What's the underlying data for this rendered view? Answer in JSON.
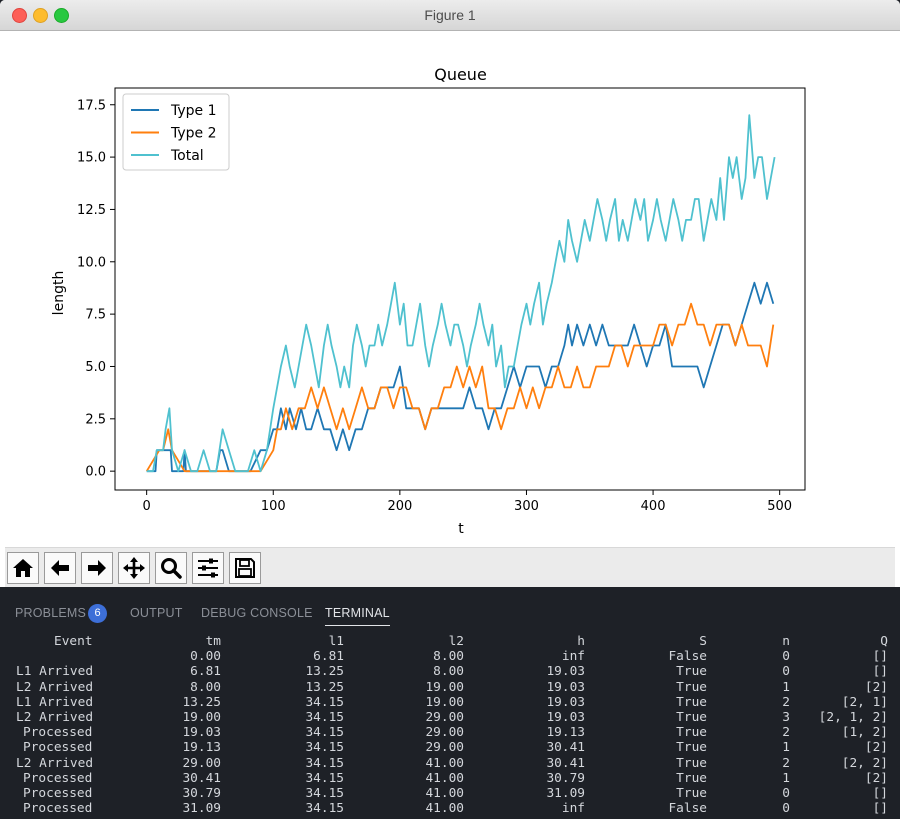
{
  "window": {
    "title": "Figure 1"
  },
  "chart_data": {
    "type": "line",
    "title": "Queue",
    "xlabel": "t",
    "ylabel": "length",
    "xlim": [
      -25,
      520
    ],
    "ylim": [
      -0.9,
      18.3
    ],
    "xticks": [
      0,
      100,
      200,
      300,
      400,
      500
    ],
    "xtick_labels": [
      "0",
      "100",
      "200",
      "300",
      "400",
      "500"
    ],
    "yticks": [
      0,
      2.5,
      5,
      7.5,
      10,
      12.5,
      15,
      17.5
    ],
    "ytick_labels": [
      "0.0",
      "2.5",
      "5.0",
      "7.5",
      "10.0",
      "12.5",
      "15.0",
      "17.5"
    ],
    "legend_position": "top-left",
    "colors": {
      "Type 1": "#1f77b4",
      "Type 2": "#ff7f0e",
      "Total": "#4fc1cf"
    },
    "series": [
      {
        "name": "Type 1",
        "x": [
          0,
          7,
          8,
          13,
          19,
          20,
          29,
          30,
          31,
          40,
          55,
          58,
          60,
          65,
          75,
          82,
          90,
          95,
          100,
          103,
          106,
          110,
          113,
          118,
          122,
          126,
          130,
          135,
          140,
          145,
          150,
          155,
          160,
          165,
          170,
          175,
          180,
          185,
          190,
          195,
          200,
          205,
          210,
          215,
          220,
          225,
          230,
          235,
          240,
          245,
          250,
          255,
          260,
          265,
          270,
          275,
          280,
          285,
          290,
          295,
          300,
          305,
          310,
          315,
          320,
          325,
          330,
          333,
          336,
          340,
          345,
          350,
          355,
          360,
          365,
          370,
          375,
          380,
          385,
          390,
          395,
          400,
          405,
          410,
          415,
          420,
          425,
          430,
          435,
          440,
          445,
          450,
          455,
          460,
          465,
          470,
          475,
          480,
          485,
          490,
          495
        ],
        "y": [
          0,
          0,
          1,
          1,
          1,
          0,
          0,
          1,
          0,
          0,
          0,
          1,
          1,
          0,
          0,
          0,
          1,
          1,
          2,
          2,
          3,
          2,
          3,
          2,
          3,
          2,
          2,
          3,
          2,
          2,
          1,
          2,
          1,
          2,
          2,
          3,
          3,
          4,
          4,
          4,
          5,
          3,
          3,
          3,
          2,
          3,
          3,
          3,
          3,
          3,
          3,
          4,
          3,
          3,
          2,
          3,
          3,
          4,
          5,
          4,
          5,
          5,
          5,
          4,
          5,
          5,
          6,
          7,
          6,
          7,
          6,
          7,
          6,
          7,
          6,
          6,
          6,
          6,
          7,
          6,
          5,
          6,
          6,
          7,
          5,
          5,
          5,
          5,
          5,
          4,
          5,
          6,
          7,
          7,
          6,
          7,
          8,
          9,
          8,
          9,
          8
        ]
      },
      {
        "name": "Type 2",
        "x": [
          0,
          10,
          13,
          17,
          20,
          30,
          45,
          60,
          70,
          80,
          90,
          100,
          103,
          106,
          110,
          115,
          120,
          125,
          130,
          135,
          140,
          145,
          150,
          155,
          160,
          165,
          170,
          175,
          180,
          185,
          190,
          195,
          200,
          205,
          210,
          215,
          220,
          225,
          230,
          235,
          240,
          245,
          250,
          255,
          260,
          265,
          270,
          275,
          280,
          285,
          290,
          295,
          300,
          305,
          310,
          315,
          320,
          325,
          330,
          335,
          340,
          345,
          350,
          355,
          360,
          365,
          370,
          375,
          380,
          385,
          390,
          395,
          400,
          405,
          410,
          415,
          420,
          425,
          430,
          435,
          440,
          445,
          450,
          455,
          460,
          465,
          470,
          475,
          480,
          485,
          490,
          495
        ],
        "y": [
          0,
          1,
          1,
          2,
          1,
          0,
          0,
          0,
          0,
          0,
          0,
          1,
          2,
          2,
          3,
          2,
          3,
          3,
          4,
          3,
          4,
          3,
          2,
          3,
          2,
          3,
          4,
          3,
          3,
          4,
          4,
          3,
          4,
          4,
          3,
          3,
          2,
          3,
          3,
          4,
          4,
          5,
          4,
          5,
          4,
          5,
          3,
          3,
          2,
          3,
          3,
          4,
          3,
          4,
          3,
          4,
          4,
          5,
          4,
          4,
          5,
          4,
          4,
          5,
          5,
          5,
          6,
          6,
          5,
          6,
          6,
          6,
          6,
          7,
          7,
          6,
          7,
          7,
          8,
          7,
          7,
          6,
          7,
          7,
          7,
          6,
          7,
          6,
          6,
          6,
          5,
          7
        ]
      },
      {
        "name": "Total",
        "x": [
          0,
          5,
          8,
          13,
          15,
          18,
          20,
          25,
          30,
          35,
          40,
          45,
          50,
          55,
          60,
          65,
          70,
          75,
          80,
          85,
          90,
          95,
          100,
          103,
          106,
          110,
          113,
          117,
          120,
          123,
          126,
          130,
          133,
          136,
          140,
          143,
          146,
          150,
          153,
          156,
          160,
          163,
          166,
          170,
          173,
          176,
          180,
          183,
          186,
          190,
          193,
          196,
          200,
          203,
          206,
          210,
          213,
          216,
          220,
          223,
          226,
          230,
          233,
          236,
          240,
          243,
          246,
          250,
          253,
          256,
          260,
          263,
          266,
          270,
          273,
          276,
          280,
          283,
          286,
          290,
          293,
          296,
          300,
          303,
          306,
          310,
          313,
          316,
          320,
          323,
          326,
          330,
          333,
          336,
          340,
          343,
          346,
          350,
          353,
          356,
          360,
          363,
          366,
          370,
          373,
          376,
          380,
          383,
          386,
          390,
          393,
          396,
          400,
          403,
          406,
          410,
          413,
          416,
          420,
          423,
          426,
          430,
          433,
          436,
          440,
          443,
          446,
          450,
          453,
          456,
          460,
          463,
          466,
          470,
          473,
          476,
          480,
          483,
          486,
          490,
          493,
          496
        ],
        "y": [
          0,
          0,
          1,
          1,
          2,
          3,
          1,
          0,
          1,
          0,
          0,
          1,
          0,
          0,
          2,
          1,
          0,
          0,
          0,
          1,
          0,
          1,
          3,
          4,
          5,
          6,
          5,
          4,
          5,
          6,
          7,
          6,
          5,
          4,
          6,
          7,
          6,
          5,
          4,
          5,
          4,
          6,
          7,
          6,
          5,
          6,
          6,
          7,
          6,
          7,
          8,
          9,
          7,
          8,
          6,
          6,
          7,
          8,
          6,
          5,
          6,
          7,
          8,
          7,
          6,
          7,
          7,
          6,
          5,
          6,
          7,
          8,
          7,
          6,
          7,
          5,
          6,
          4,
          5,
          5,
          6,
          7,
          8,
          7,
          8,
          9,
          7,
          8,
          9,
          10,
          11,
          10,
          12,
          11,
          10,
          11,
          12,
          11,
          12,
          13,
          12,
          11,
          12,
          13,
          11,
          12,
          11,
          12,
          13,
          12,
          13,
          11,
          12,
          13,
          12,
          11,
          12,
          13,
          12,
          11,
          12,
          12,
          13,
          13,
          11,
          12,
          13,
          12,
          14,
          12,
          15,
          14,
          15,
          13,
          14,
          17,
          14,
          15,
          15,
          13,
          14,
          15
        ]
      }
    ]
  },
  "toolbar": {
    "buttons": [
      "home-icon",
      "back-arrow-icon",
      "forward-arrow-icon",
      "pan-icon",
      "zoom-icon",
      "configure-subplots-icon",
      "save-icon"
    ]
  },
  "panel": {
    "tabs": [
      {
        "label": "PROBLEMS",
        "badge": "6"
      },
      {
        "label": "OUTPUT"
      },
      {
        "label": "DEBUG CONSOLE"
      },
      {
        "label": "TERMINAL"
      }
    ]
  },
  "terminal": {
    "headers": [
      "Event",
      "tm",
      "l1",
      "l2",
      "h",
      "S",
      "n",
      "Q"
    ],
    "rows": [
      [
        "",
        "0.00",
        "6.81",
        "8.00",
        "inf",
        "False",
        "0",
        "[]"
      ],
      [
        "L1 Arrived",
        "6.81",
        "13.25",
        "8.00",
        "19.03",
        "True",
        "0",
        "[]"
      ],
      [
        "L2 Arrived",
        "8.00",
        "13.25",
        "19.00",
        "19.03",
        "True",
        "1",
        "[2]"
      ],
      [
        "L1 Arrived",
        "13.25",
        "34.15",
        "19.00",
        "19.03",
        "True",
        "2",
        "[2, 1]"
      ],
      [
        "L2 Arrived",
        "19.00",
        "34.15",
        "29.00",
        "19.03",
        "True",
        "3",
        "[2, 1, 2]"
      ],
      [
        "Processed",
        "19.03",
        "34.15",
        "29.00",
        "19.13",
        "True",
        "2",
        "[1, 2]"
      ],
      [
        "Processed",
        "19.13",
        "34.15",
        "29.00",
        "30.41",
        "True",
        "1",
        "[2]"
      ],
      [
        "L2 Arrived",
        "29.00",
        "34.15",
        "41.00",
        "30.41",
        "True",
        "2",
        "[2, 2]"
      ],
      [
        "Processed",
        "30.41",
        "34.15",
        "41.00",
        "30.79",
        "True",
        "1",
        "[2]"
      ],
      [
        "Processed",
        "30.79",
        "34.15",
        "41.00",
        "31.09",
        "True",
        "0",
        "[]"
      ],
      [
        "Processed",
        "31.09",
        "34.15",
        "41.00",
        "inf",
        "False",
        "0",
        "[]"
      ]
    ]
  }
}
